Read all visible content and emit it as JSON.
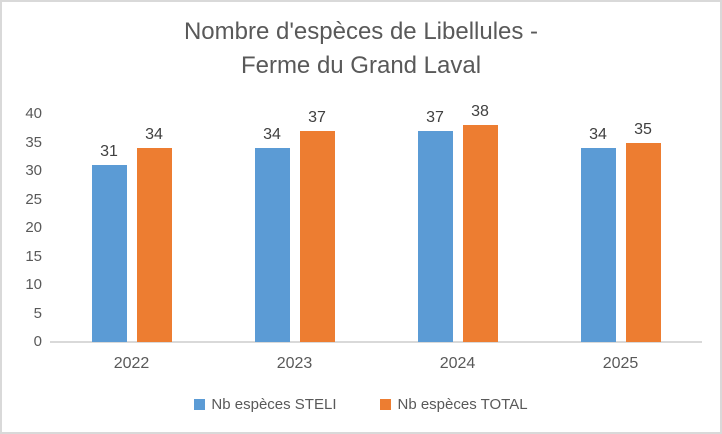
{
  "title": {
    "line1": "Nombre d'espèces de Libellules -",
    "line2": "Ferme du Grand Laval"
  },
  "chart_data": {
    "type": "bar",
    "title": "Nombre d'espèces de Libellules - Ferme du Grand Laval",
    "categories": [
      "2022",
      "2023",
      "2024",
      "2025"
    ],
    "series": [
      {
        "name": "Nb espèces STELI",
        "color": "#5b9bd5",
        "values": [
          31,
          34,
          37,
          34
        ]
      },
      {
        "name": "Nb espèces TOTAL",
        "color": "#ed7d31",
        "values": [
          34,
          37,
          38,
          35
        ]
      }
    ],
    "ylim": [
      0,
      40
    ],
    "yticks": [
      0,
      5,
      10,
      15,
      20,
      25,
      30,
      35,
      40
    ],
    "grid": false,
    "data_labels": true,
    "legend_position": "bottom"
  },
  "colors": {
    "title_text": "#595959",
    "axis_text": "#595959",
    "data_label_text": "#404040",
    "axis_line": "#d9d9d9",
    "frame_border": "#d9d9d9",
    "background": "#ffffff"
  }
}
